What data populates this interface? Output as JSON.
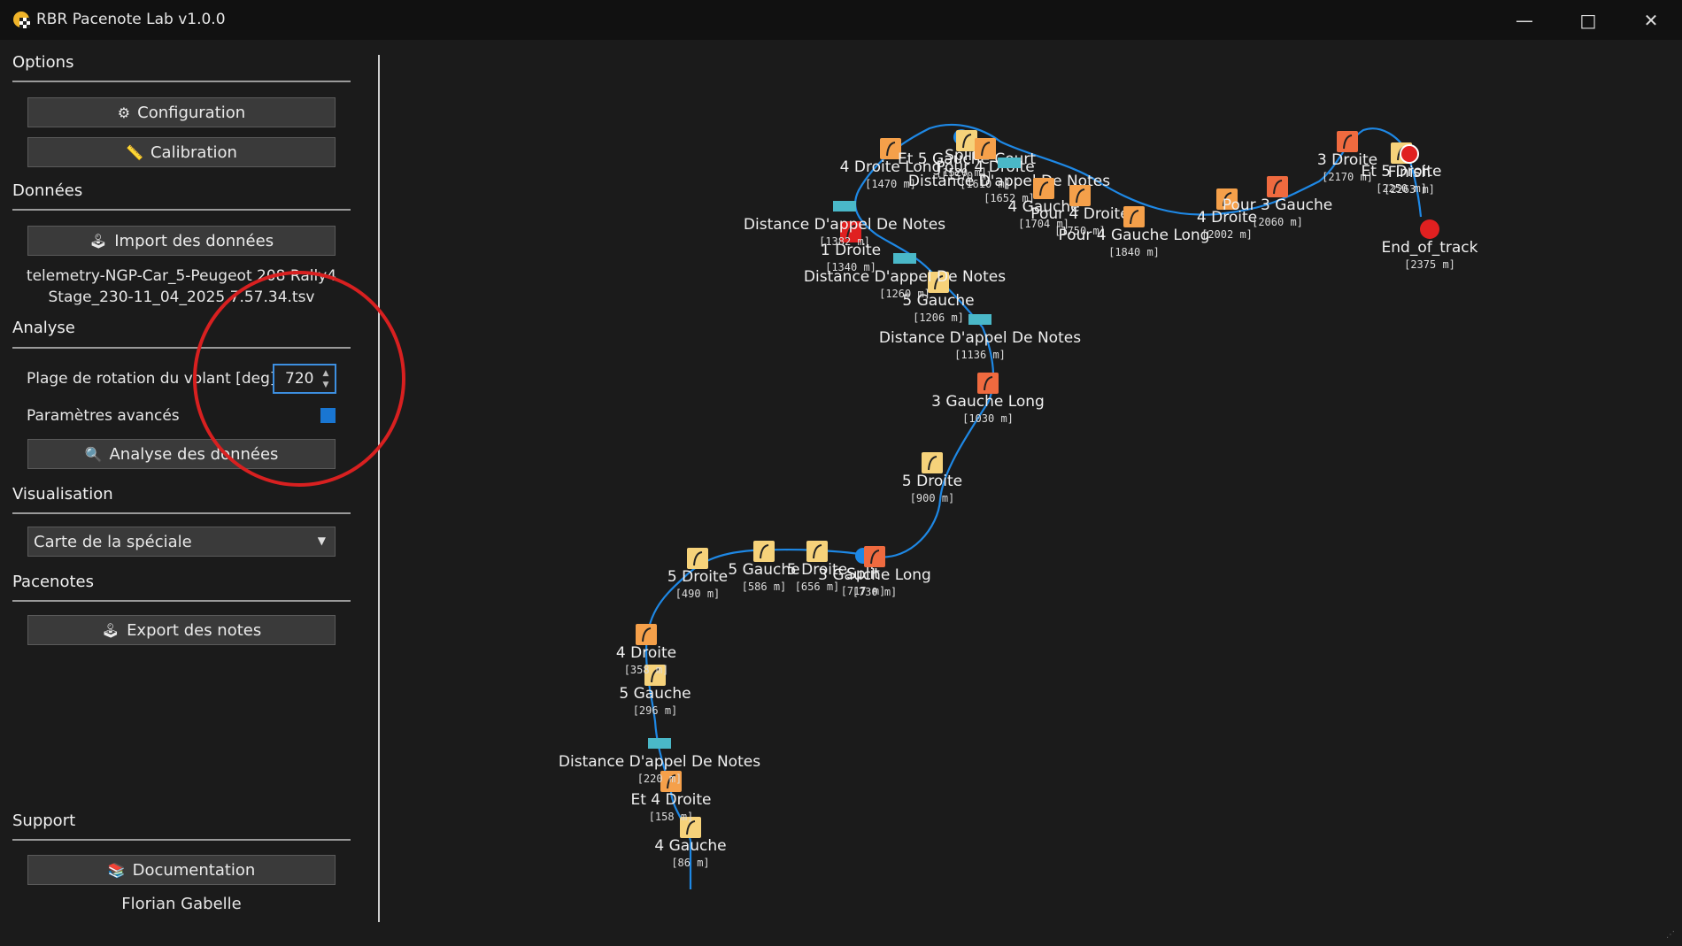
{
  "window": {
    "title": "RBR Pacenote Lab v1.0.0",
    "controls": [
      "minimize",
      "maximize",
      "close"
    ]
  },
  "sidebar": {
    "options": {
      "title": "Options",
      "config_label": "Configuration",
      "calibration_label": "Calibration"
    },
    "data": {
      "title": "Données",
      "import_label": "Import des données",
      "file_line1": "telemetry-NGP-Car_5-Peugeot 208 Rally4",
      "file_line2": "Stage_230-11_04_2025 7.57.34.tsv"
    },
    "analysis": {
      "title": "Analyse",
      "rotation_label": "Plage de rotation du volant [deg]",
      "rotation_value": "720",
      "advanced_label": "Paramètres avancés",
      "advanced_checked": true,
      "analyze_label": "Analyse des données"
    },
    "visualisation": {
      "title": "Visualisation",
      "selected": "Carte de la spéciale"
    },
    "pacenotes": {
      "title": "Pacenotes",
      "export_label": "Export des notes"
    },
    "support": {
      "title": "Support",
      "doc_label": "Documentation",
      "author": "Florian Gabelle"
    }
  },
  "colors": {
    "accent": "#1976d2",
    "route": "#1e88e5",
    "annotation": "#e02020",
    "note_orange": "#f5a04a",
    "note_red": "#ef6a3f",
    "note_light": "#f6d27a",
    "distance_call": "#4ab8c8"
  },
  "map": {
    "notes": [
      {
        "text": "4 Gauche",
        "dist": "[86 m]",
        "kind": "light"
      },
      {
        "text": "Et 4 Droite",
        "dist": "[158 m]",
        "kind": "orange"
      },
      {
        "text": "Distance D'appel De Notes",
        "dist": "[220 m]",
        "kind": "call"
      },
      {
        "text": "5 Gauche",
        "dist": "[296 m]",
        "kind": "light"
      },
      {
        "text": "4 Droite",
        "dist": "[358 m]",
        "kind": "orange"
      },
      {
        "text": "5 Droite",
        "dist": "[490 m]",
        "kind": "light"
      },
      {
        "text": "5 Gauche",
        "dist": "[586 m]",
        "kind": "light"
      },
      {
        "text": "5 Droite",
        "dist": "[656 m]",
        "kind": "light"
      },
      {
        "text": "Split",
        "dist": "[717 m]",
        "kind": "split"
      },
      {
        "text": "3 Gauche Long",
        "dist": "[730 m]",
        "kind": "red"
      },
      {
        "text": "5 Droite",
        "dist": "[900 m]",
        "kind": "light"
      },
      {
        "text": "3 Gauche Long",
        "dist": "[1030 m]",
        "kind": "red"
      },
      {
        "text": "Distance D'appel De Notes",
        "dist": "[1136 m]",
        "kind": "call"
      },
      {
        "text": "5 Gauche",
        "dist": "[1206 m]",
        "kind": "light"
      },
      {
        "text": "Distance D'appel De Notes",
        "dist": "[1260 m]",
        "kind": "call"
      },
      {
        "text": "1 Droite",
        "dist": "[1340 m]",
        "kind": "hairpin"
      },
      {
        "text": "Distance D'appel De Notes",
        "dist": "[1382 m]",
        "kind": "call"
      },
      {
        "text": "4 Droite Long",
        "dist": "[1470 m]",
        "kind": "orange"
      },
      {
        "text": "Split",
        "dist": "[1520 m]",
        "kind": "split"
      },
      {
        "text": "Et 5 Gauche Court",
        "dist": "[1570 m]",
        "kind": "light"
      },
      {
        "text": "Pour 4 Droite",
        "dist": "[1610 m]",
        "kind": "orange"
      },
      {
        "text": "Distance D'appel De Notes",
        "dist": "[1652 m]",
        "kind": "call"
      },
      {
        "text": "4 Gauche",
        "dist": "[1704 m]",
        "kind": "orange"
      },
      {
        "text": "Pour 4 Droite",
        "dist": "[1750 m]",
        "kind": "orange"
      },
      {
        "text": "Pour 4 Gauche Long",
        "dist": "[1840 m]",
        "kind": "orange"
      },
      {
        "text": "4 Droite",
        "dist": "[2002 m]",
        "kind": "orange"
      },
      {
        "text": "Pour 3 Gauche",
        "dist": "[2060 m]",
        "kind": "red"
      },
      {
        "text": "3 Droite",
        "dist": "[2170 m]",
        "kind": "red"
      },
      {
        "text": "Et 5 Droite",
        "dist": "[2250 m]",
        "kind": "light"
      },
      {
        "text": "Finish",
        "dist": "[2263 m]",
        "kind": "finish"
      },
      {
        "text": "End_of_track",
        "dist": "[2375 m]",
        "kind": "stop"
      }
    ]
  }
}
